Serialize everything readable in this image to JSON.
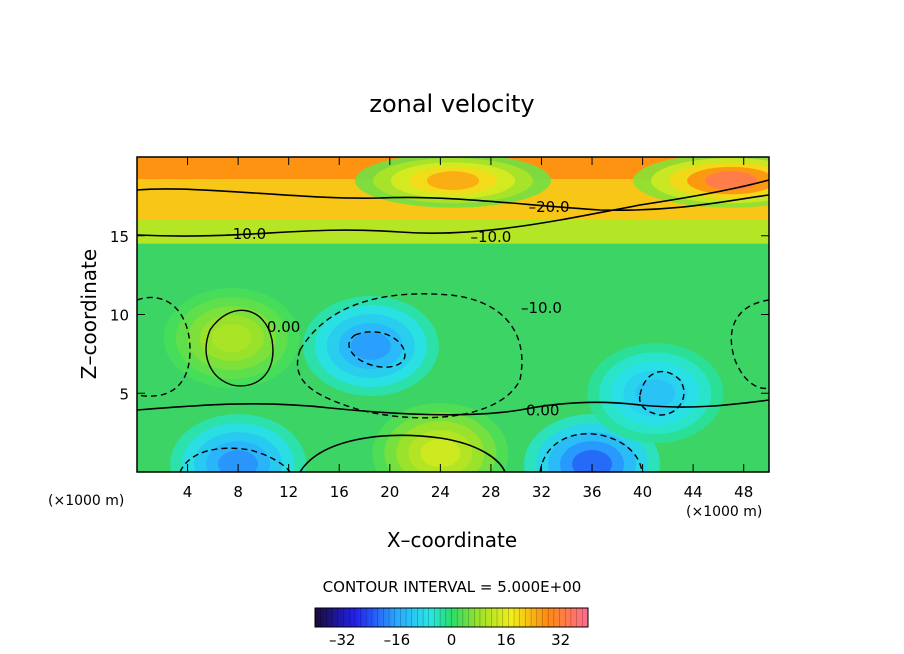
{
  "chart_data": {
    "type": "heatmap",
    "title": "zonal velocity",
    "xlabel": "X–coordinate",
    "ylabel": "Z–coordinate",
    "x_unit_left": "(×1000 m)",
    "x_unit_right": "(×1000 m)",
    "xlim": [
      0,
      50
    ],
    "ylim": [
      0,
      20
    ],
    "x_ticks": [
      4,
      8,
      12,
      16,
      20,
      24,
      28,
      32,
      36,
      40,
      44,
      48
    ],
    "y_ticks": [
      5,
      10,
      15
    ],
    "contour_interval_text": "CONTOUR INTERVAL = 5.000E+00",
    "contour_interval": 5.0,
    "contour_labels": [
      {
        "text": "–20.0",
        "x": 32.6,
        "y": 16.5
      },
      {
        "text": "–10.0",
        "x": 28.0,
        "y": 14.6
      },
      {
        "text": "–10.0",
        "x": 8.6,
        "y": 14.8
      },
      {
        "text": "–10.0",
        "x": 32.0,
        "y": 10.1
      },
      {
        "text": "0.00",
        "x": 11.6,
        "y": 8.9
      },
      {
        "text": "0.00",
        "x": 32.1,
        "y": 3.6
      }
    ],
    "colorbar": {
      "range": [
        -40,
        40
      ],
      "ticks": [
        -32,
        -16,
        0,
        16,
        32
      ],
      "tick_labels": [
        "–32",
        "–16",
        "0",
        "16",
        "32"
      ]
    },
    "features": [
      {
        "kind": "max",
        "x": 25,
        "y": 18.5,
        "value": 25
      },
      {
        "kind": "max",
        "x": 47,
        "y": 18.5,
        "value": 34
      },
      {
        "kind": "min",
        "x": 18.5,
        "y": 8,
        "value": -17
      },
      {
        "kind": "min",
        "x": 36,
        "y": 0.5,
        "value": -22
      },
      {
        "kind": "min",
        "x": 8,
        "y": 0.5,
        "value": -18
      },
      {
        "kind": "min",
        "x": 41,
        "y": 5,
        "value": -12
      },
      {
        "kind": "max",
        "x": 7.5,
        "y": 8.5,
        "value": 10
      },
      {
        "kind": "max",
        "x": 24,
        "y": 1.2,
        "value": 14
      }
    ]
  }
}
